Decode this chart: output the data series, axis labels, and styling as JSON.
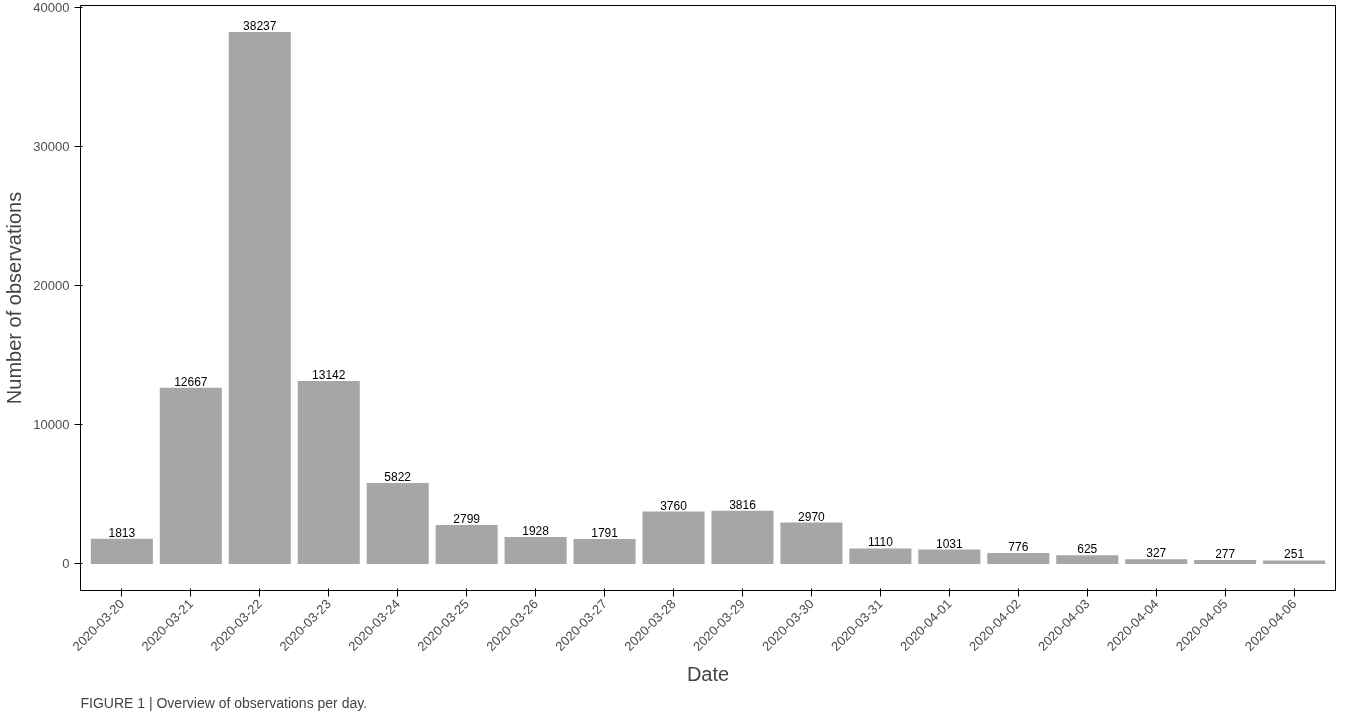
{
  "chart_data": {
    "type": "bar",
    "xlabel": "Date",
    "ylabel": "Number of observations",
    "categories": [
      "2020-03-20",
      "2020-03-21",
      "2020-03-22",
      "2020-03-23",
      "2020-03-24",
      "2020-03-25",
      "2020-03-26",
      "2020-03-27",
      "2020-03-28",
      "2020-03-29",
      "2020-03-30",
      "2020-03-31",
      "2020-04-01",
      "2020-04-02",
      "2020-04-03",
      "2020-04-04",
      "2020-04-05",
      "2020-04-06"
    ],
    "values": [
      1813,
      12667,
      38237,
      13142,
      5822,
      2799,
      1928,
      1791,
      3760,
      3816,
      2970,
      1110,
      1031,
      776,
      625,
      327,
      277,
      251
    ],
    "color": "#a6a6a6",
    "ylim": [
      -1912,
      40149
    ],
    "yticks": [
      0,
      10000,
      20000,
      30000,
      40000
    ],
    "grid": false,
    "data_labels": true,
    "annotations": [
      "FIGURE 1 | Overview of observations per day."
    ]
  }
}
